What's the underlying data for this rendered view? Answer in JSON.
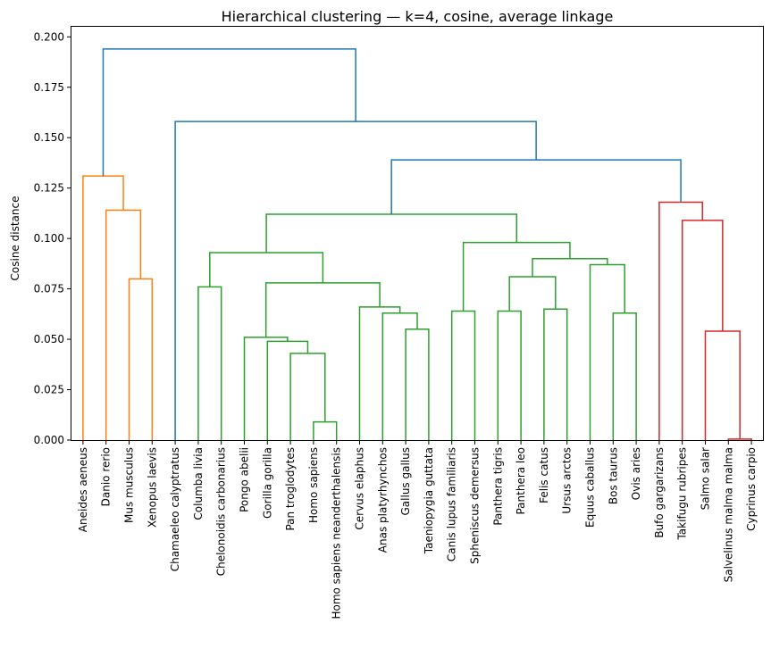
{
  "chart_data": {
    "type": "dendrogram",
    "title": "Hierarchical clustering — k=4, cosine, average linkage",
    "ylabel": "Cosine distance",
    "ylim": [
      0,
      0.205
    ],
    "yticks": [
      "0.000",
      "0.025",
      "0.050",
      "0.075",
      "0.100",
      "0.125",
      "0.150",
      "0.175",
      "0.200"
    ],
    "ytick_values": [
      0,
      0.025,
      0.05,
      0.075,
      0.1,
      0.125,
      0.15,
      0.175,
      0.2
    ],
    "leaves": [
      "Aneides aeneus",
      "Danio rerio",
      "Mus musculus",
      "Xenopus laevis",
      "Chamaeleo calyptratus",
      "Columba livia",
      "Chelonoidis carbonarius",
      "Pongo abelii",
      "Gorilla gorilla",
      "Pan troglodytes",
      "Homo sapiens",
      "Homo sapiens neanderthalensis",
      "Cervus elaphus",
      "Anas platyrhynchos",
      "Gallus gallus",
      "Taeniopygia guttata",
      "Canis lupus familiaris",
      "Spheniscus demersus",
      "Panthera tigris",
      "Panthera leo",
      "Felis catus",
      "Ursus arctos",
      "Equus caballus",
      "Bos taurus",
      "Ovis aries",
      "Bufo gargarizans",
      "Takifugu rubripes",
      "Salmo salar",
      "Salvelinus malma malma",
      "Cyprinus carpio"
    ],
    "colors": {
      "c1": "#ff7f0e",
      "c2": "#2ca02c",
      "c3": "#d62728",
      "above": "#1f77b4"
    },
    "merges": [
      {
        "id": "m1",
        "a": "L2",
        "b": "L3",
        "h": 0.08,
        "c": "c1"
      },
      {
        "id": "m2",
        "a": "L1",
        "b": "m1",
        "h": 0.114,
        "c": "c1"
      },
      {
        "id": "m3",
        "a": "L0",
        "b": "m2",
        "h": 0.131,
        "c": "c1"
      },
      {
        "id": "m4",
        "a": "L10",
        "b": "L11",
        "h": 0.009,
        "c": "c2"
      },
      {
        "id": "m5",
        "a": "L9",
        "b": "m4",
        "h": 0.043,
        "c": "c2"
      },
      {
        "id": "m6",
        "a": "L8",
        "b": "m5",
        "h": 0.049,
        "c": "c2"
      },
      {
        "id": "m7",
        "a": "L7",
        "b": "m6",
        "h": 0.051,
        "c": "c2"
      },
      {
        "id": "m8",
        "a": "L14",
        "b": "L15",
        "h": 0.055,
        "c": "c2"
      },
      {
        "id": "m9",
        "a": "L13",
        "b": "m8",
        "h": 0.063,
        "c": "c2"
      },
      {
        "id": "m10",
        "a": "L12",
        "b": "m9",
        "h": 0.066,
        "c": "c2"
      },
      {
        "id": "m11",
        "a": "m7",
        "b": "m10",
        "h": 0.078,
        "c": "c2"
      },
      {
        "id": "m12",
        "a": "L5",
        "b": "L6",
        "h": 0.076,
        "c": "c2"
      },
      {
        "id": "m13",
        "a": "m12",
        "b": "m11",
        "h": 0.093,
        "c": "c2"
      },
      {
        "id": "m14",
        "a": "L16",
        "b": "L17",
        "h": 0.064,
        "c": "c2"
      },
      {
        "id": "m15",
        "a": "L18",
        "b": "L19",
        "h": 0.064,
        "c": "c2"
      },
      {
        "id": "m16",
        "a": "L20",
        "b": "L21",
        "h": 0.065,
        "c": "c2"
      },
      {
        "id": "m17",
        "a": "m15",
        "b": "m16",
        "h": 0.081,
        "c": "c2"
      },
      {
        "id": "m18",
        "a": "L23",
        "b": "L24",
        "h": 0.063,
        "c": "c2"
      },
      {
        "id": "m19",
        "a": "L22",
        "b": "m18",
        "h": 0.087,
        "c": "c2"
      },
      {
        "id": "m20",
        "a": "m17",
        "b": "m19",
        "h": 0.09,
        "c": "c2"
      },
      {
        "id": "m21",
        "a": "m14",
        "b": "m20",
        "h": 0.098,
        "c": "c2"
      },
      {
        "id": "m22",
        "a": "m13",
        "b": "m21",
        "h": 0.112,
        "c": "c2"
      },
      {
        "id": "m23",
        "a": "L28",
        "b": "L29",
        "h": 0.0005,
        "c": "c3"
      },
      {
        "id": "m24",
        "a": "L27",
        "b": "m23",
        "h": 0.054,
        "c": "c3"
      },
      {
        "id": "m25",
        "a": "L26",
        "b": "m24",
        "h": 0.109,
        "c": "c3"
      },
      {
        "id": "m26",
        "a": "L25",
        "b": "m25",
        "h": 0.118,
        "c": "c3"
      },
      {
        "id": "m27",
        "a": "m22",
        "b": "m26",
        "h": 0.139,
        "c": "above"
      },
      {
        "id": "m28",
        "a": "L4",
        "b": "m27",
        "h": 0.158,
        "c": "above"
      },
      {
        "id": "m29",
        "a": "m3",
        "b": "m28",
        "h": 0.194,
        "c": "above"
      }
    ]
  }
}
